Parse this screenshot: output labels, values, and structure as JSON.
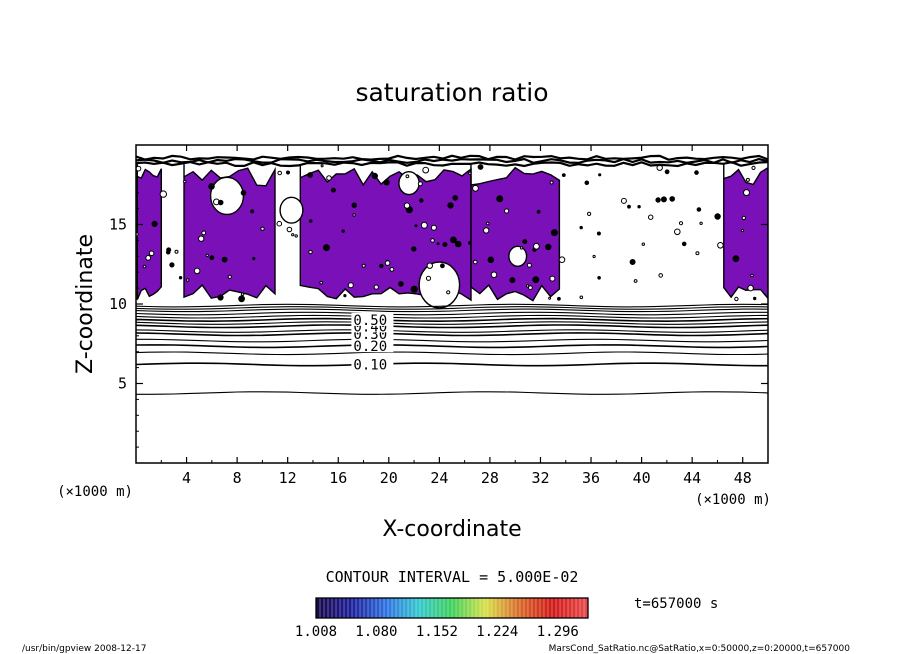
{
  "chart_data": {
    "type": "contour",
    "title": "saturation ratio",
    "xlabel": "X-coordinate",
    "ylabel": "Z-coordinate",
    "x_unit": "(×1000 m)",
    "y_unit": "(×1000 m)",
    "xlim": [
      0,
      50
    ],
    "ylim": [
      0,
      20
    ],
    "x_ticks": [
      4,
      8,
      12,
      16,
      20,
      24,
      28,
      32,
      36,
      40,
      44,
      48
    ],
    "y_ticks": [
      5,
      10,
      15
    ],
    "contour_interval_text": "CONTOUR INTERVAL = 5.000E-02",
    "contours": [
      {
        "label": "0.10",
        "z": 6.2
      },
      {
        "label": "0.20",
        "z": 7.35
      },
      {
        "label": "0.30",
        "z": 8.1
      },
      {
        "label": "0.40",
        "z": 8.6
      },
      {
        "label": "0.50",
        "z": 9.0
      }
    ],
    "unlabeled_contours_z": [
      4.4,
      6.9,
      7.7,
      8.3,
      8.8,
      9.2,
      9.4,
      9.6,
      9.75,
      9.9
    ],
    "shade_colorbar": {
      "ticks": [
        "1.008",
        "1.080",
        "1.152",
        "1.224",
        "1.296"
      ],
      "range": [
        1.008,
        1.332
      ],
      "colors": [
        "#1a0a4a",
        "#1e1e9a",
        "#2f6ee0",
        "#35c8d0",
        "#3fcf5a",
        "#d8e04a",
        "#d86a2a",
        "#d01818",
        "#e64a4a"
      ],
      "fill_color": "#7a10b8"
    },
    "supersaturated_regions_x": [
      [
        0.1,
        2.0
      ],
      [
        3.8,
        11.0
      ],
      [
        13.0,
        26.5
      ],
      [
        26.5,
        33.5
      ],
      [
        46.5,
        50.0
      ]
    ],
    "time_label": "t=657000 s"
  },
  "footer": {
    "left": "/usr/bin/gpview   2008-12-17",
    "right": "MarsCond_SatRatio.nc@SatRatio,x=0:50000,z=0:20000,t=657000"
  }
}
